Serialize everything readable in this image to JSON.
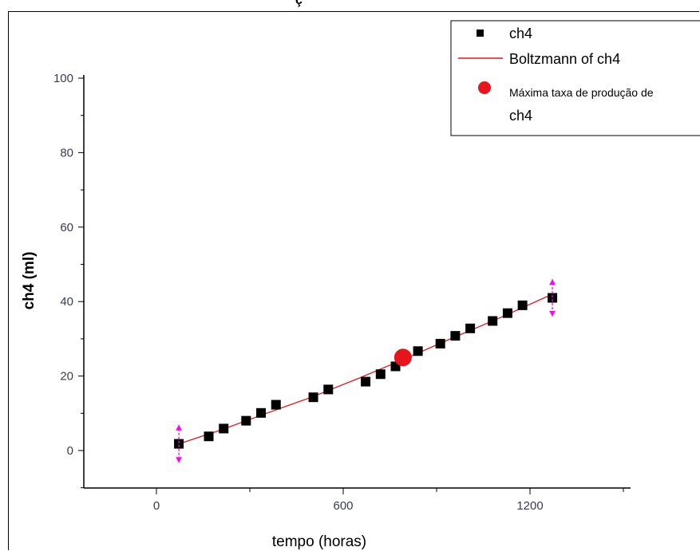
{
  "top_fragment": "ç",
  "chart_data": {
    "type": "scatter",
    "xlabel": "tempo (horas)",
    "ylabel": "ch4 (ml)",
    "xlim": [
      -240,
      1450
    ],
    "ylim": [
      -10,
      100
    ],
    "x_ticks": [
      0,
      600,
      1200
    ],
    "y_ticks": [
      0,
      20,
      40,
      60,
      80,
      100
    ],
    "grid": false,
    "legend_position": "top-right",
    "colors": {
      "points": "#000000",
      "fit_line": "#e8141b",
      "max_point": "#e8141b",
      "error_marker": "#ff00ff",
      "tick_labels": "#3a3a55"
    },
    "series": [
      {
        "name": "ch4",
        "marker": "square",
        "x": [
          72,
          168,
          216,
          288,
          336,
          384,
          504,
          552,
          672,
          720,
          768,
          840,
          912,
          960,
          1008,
          1080,
          1128,
          1176,
          1272
        ],
        "y": [
          1.8,
          3.8,
          5.9,
          8.0,
          10.1,
          12.3,
          14.3,
          16.4,
          18.5,
          20.5,
          22.6,
          26.7,
          28.7,
          30.8,
          32.8,
          34.8,
          36.9,
          39.0,
          41.0
        ]
      },
      {
        "name": "Boltzmann of ch4",
        "type": "line",
        "x": [
          72,
          200,
          350,
          500,
          650,
          800,
          950,
          1100,
          1272
        ],
        "y": [
          1.8,
          5.3,
          9.9,
          14.4,
          19.4,
          24.7,
          30.2,
          35.5,
          42.0
        ]
      },
      {
        "name": "Máxima taxa de produção de ch4",
        "marker": "circle",
        "x": [
          792
        ],
        "y": [
          25.0
        ]
      }
    ],
    "error_bars": [
      {
        "x": 72,
        "y": 1.8,
        "low": -3.3,
        "high": 6.9
      },
      {
        "x": 1272,
        "y": 41.0,
        "low": 36.0,
        "high": 46.0
      }
    ],
    "legend": {
      "items": [
        {
          "label": "ch4",
          "symbol": "square"
        },
        {
          "label": "Boltzmann of ch4",
          "symbol": "line"
        },
        {
          "label_line1": "Máxima taxa de produção de",
          "label_line2": "ch4",
          "symbol": "circle"
        }
      ]
    }
  }
}
